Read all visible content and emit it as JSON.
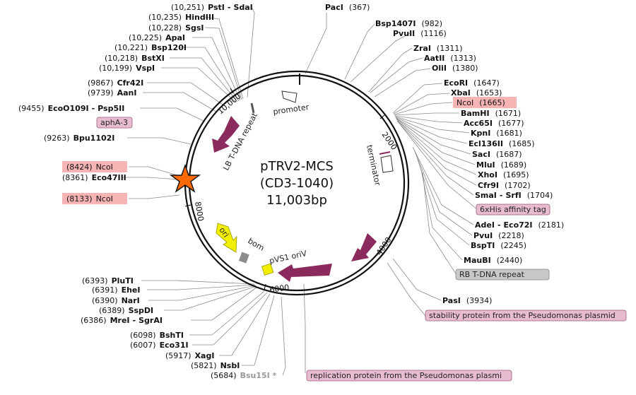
{
  "title": {
    "name": "pTRV2-MCS",
    "subtitle": "(CD3-1040)",
    "length": "11,003bp"
  },
  "ticks": [
    "2000",
    "4000",
    "6000",
    "8000",
    "10,000"
  ],
  "colors": {
    "feature_arrow": "#8b2a5c",
    "ori_arrow": "#f2ee00",
    "pvs1_box": "#f2ee00",
    "bom_box": "#8c8c8c",
    "highlight_pink": "#f7b4b4",
    "tag_pink": "#e8bcd0",
    "tag_gray": "#c8c8c8",
    "star": "#ff6a00"
  },
  "sites_top_left": [
    {
      "pos": "(10,251)",
      "name": "PstI",
      "name2": "SdaI"
    },
    {
      "pos": "(10,235)",
      "name": "HindIII"
    },
    {
      "pos": "(10,228)",
      "name": "SgsI"
    },
    {
      "pos": "(10,225)",
      "name": "ApaI"
    },
    {
      "pos": "(10,221)",
      "name": "Bsp120I"
    },
    {
      "pos": "(10,218)",
      "name": "BstXI"
    },
    {
      "pos": "(10,199)",
      "name": "VspI"
    },
    {
      "pos": "(9867)",
      "name": "Cfr42I"
    },
    {
      "pos": "(9739)",
      "name": "AanI"
    },
    {
      "pos": "(9455)",
      "name": "EcoO109I",
      "name2": "Psp5II"
    },
    {
      "pos": "(9263)",
      "name": "Bpu1102I"
    }
  ],
  "sites_left": [
    {
      "pos": "(8424)",
      "name": "NcoI",
      "highlight": true
    },
    {
      "pos": "(8361)",
      "name": "Eco47III"
    },
    {
      "pos": "(8133)",
      "name": "NcoI",
      "highlight": true
    }
  ],
  "sites_top": [
    {
      "pos": "(367)",
      "name": "PacI"
    }
  ],
  "sites_right": [
    {
      "pos": "(982)",
      "name": "Bsp1407I"
    },
    {
      "pos": "(1116)",
      "name": "PvuII"
    },
    {
      "pos": "(1311)",
      "name": "ZraI"
    },
    {
      "pos": "(1313)",
      "name": "AatII"
    },
    {
      "pos": "(1380)",
      "name": "OliI"
    },
    {
      "pos": "(1647)",
      "name": "EcoRI"
    },
    {
      "pos": "(1653)",
      "name": "XbaI"
    },
    {
      "pos": "(1665)",
      "name": "NcoI",
      "highlight": true
    },
    {
      "pos": "(1671)",
      "name": "BamHI"
    },
    {
      "pos": "(1677)",
      "name": "Acc65I"
    },
    {
      "pos": "(1681)",
      "name": "KpnI"
    },
    {
      "pos": "(1685)",
      "name": "Ecl136II"
    },
    {
      "pos": "(1687)",
      "name": "SacI"
    },
    {
      "pos": "(1689)",
      "name": "MluI"
    },
    {
      "pos": "(1695)",
      "name": "XhoI"
    },
    {
      "pos": "(1702)",
      "name": "Cfr9I"
    },
    {
      "pos": "(1704)",
      "name": "SmaI",
      "name2": "SrfI"
    },
    {
      "pos": "(2181)",
      "name": "AdeI",
      "name2": "Eco72I"
    },
    {
      "pos": "(2218)",
      "name": "PvuI"
    },
    {
      "pos": "(2245)",
      "name": "BspTI"
    },
    {
      "pos": "(2440)",
      "name": "MauBI"
    },
    {
      "pos": "(3934)",
      "name": "PasI"
    }
  ],
  "sites_bottom_left": [
    {
      "pos": "(6393)",
      "name": "PluTI"
    },
    {
      "pos": "(6391)",
      "name": "EheI"
    },
    {
      "pos": "(6390)",
      "name": "NarI"
    },
    {
      "pos": "(6389)",
      "name": "SspDI"
    },
    {
      "pos": "(6386)",
      "name": "MreI",
      "name2": "SgrAI"
    },
    {
      "pos": "(6098)",
      "name": "BshTI"
    },
    {
      "pos": "(6007)",
      "name": "Eco31I"
    },
    {
      "pos": "(5917)",
      "name": "XagI"
    },
    {
      "pos": "(5821)",
      "name": "NsbI"
    },
    {
      "pos": "(5684)",
      "name": "Bsu15I *",
      "faded": true
    }
  ],
  "feature_tags": {
    "apha3": "aphA-3",
    "his_tag": "6xHis affinity tag",
    "rb_repeat": "RB T-DNA repeat",
    "stability": "stability protein from the Pseudomonas plasmid",
    "replication": "replication protein from the Pseudomonas plasmi"
  },
  "inner_labels": {
    "promoter": "promoter",
    "terminator": "terminator",
    "lb_repeat": "LB T-DNA repeat",
    "ori": "ori",
    "bom": "bom",
    "pvs1": "pVS1 oriV"
  }
}
